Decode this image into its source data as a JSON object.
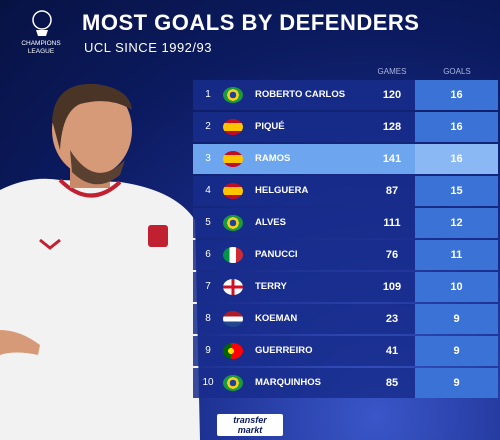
{
  "header": {
    "league_logo": "CHAMPIONS LEAGUE",
    "title": "MOST GOALS BY DEFENDERS",
    "subtitle": "UCL SINCE 1992/93"
  },
  "table": {
    "columns": [
      "GAMES",
      "GOALS"
    ],
    "rows": [
      [
        1,
        "ROBERTO CARLOS",
        120,
        16
      ],
      [
        2,
        "PIQUÉ",
        128,
        16
      ],
      [
        3,
        "RAMOS",
        141,
        16
      ],
      [
        4,
        "HELGUERA",
        87,
        15
      ],
      [
        5,
        "ALVES",
        111,
        12
      ],
      [
        6,
        "PANUCCI",
        76,
        11
      ],
      [
        7,
        "TERRY",
        109,
        10
      ],
      [
        8,
        "KOEMAN",
        23,
        9
      ],
      [
        9,
        "GUERREIRO",
        41,
        9
      ],
      [
        10,
        "MARQUINHOS",
        85,
        9
      ]
    ]
  },
  "footer": {
    "logo_top": "transfer",
    "logo_bottom": "markt"
  }
}
